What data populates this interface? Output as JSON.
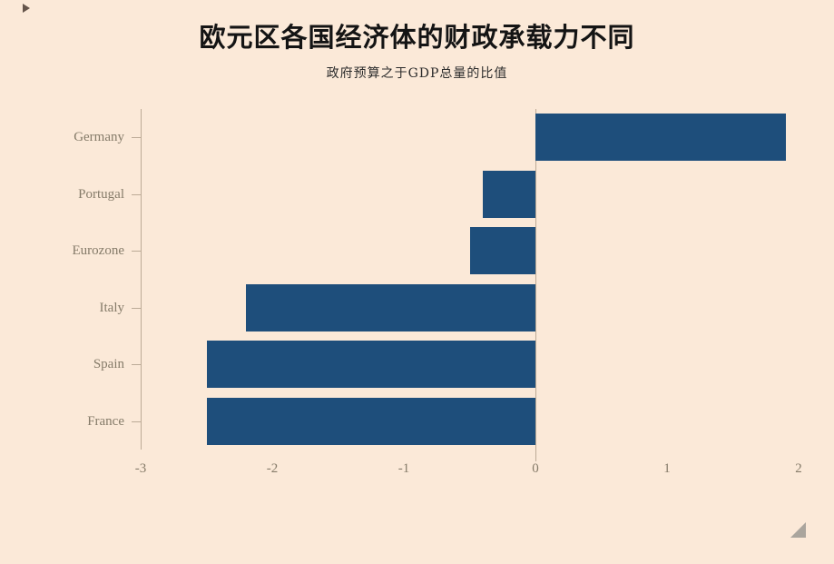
{
  "page": {
    "background": "#fbe9d8"
  },
  "chart_data": {
    "type": "bar",
    "orientation": "horizontal",
    "title": "欧元区各国经济体的财政承载力不同",
    "subtitle": "政府预算之于GDP总量的比值",
    "categories": [
      "Germany",
      "Portugal",
      "Eurozone",
      "Italy",
      "Spain",
      "France"
    ],
    "values": [
      1.9,
      -0.4,
      -0.5,
      -2.2,
      -2.5,
      -2.5
    ],
    "xlim": [
      -3,
      2
    ],
    "x_ticks": [
      "-3",
      "-2",
      "-1",
      "0",
      "1",
      "2"
    ],
    "bar_color": "#1e4e7b",
    "axis_color": "#bcab97",
    "label_color": "#857b69",
    "grid": false,
    "legend": "none",
    "xlabel": "",
    "ylabel": ""
  }
}
